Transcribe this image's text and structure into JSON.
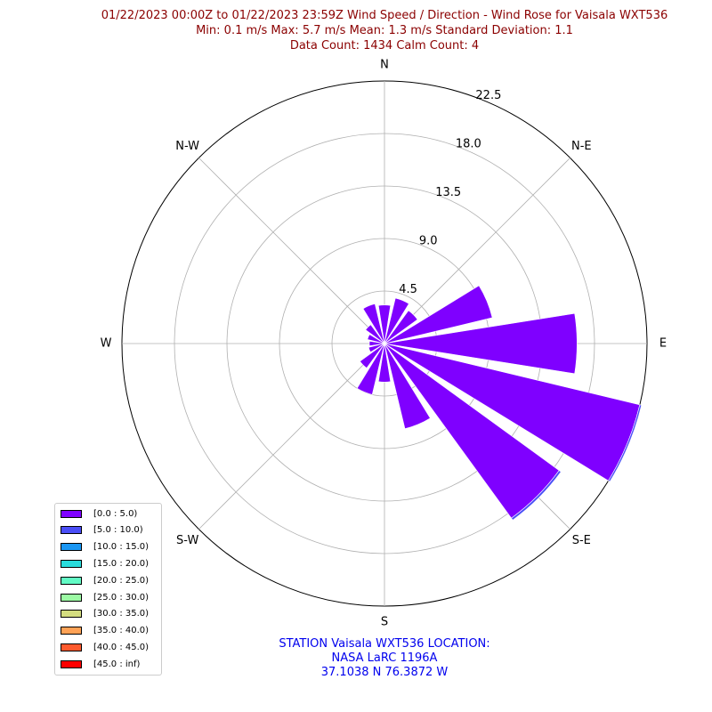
{
  "title": {
    "line1": "01/22/2023 00:00Z to 01/22/2023 23:59Z Wind Speed / Direction - Wind Rose for Vaisala WXT536",
    "line2": "Min: 0.1 m/s   Max: 5.7 m/s   Mean: 1.3 m/s  Standard Deviation: 1.1",
    "line3": "Data Count: 1434  Calm Count:  4"
  },
  "station": {
    "line1": "STATION Vaisala WXT536 LOCATION:",
    "line2": "NASA LaRC 1196A",
    "line3": "37.1038 N 76.3872 W"
  },
  "chart_data": {
    "type": "windrose",
    "directions": [
      "N",
      "NNE",
      "NE",
      "ENE",
      "E",
      "ESE",
      "SE",
      "SSE",
      "S",
      "SSW",
      "SW",
      "WSW",
      "W",
      "WNW",
      "NW",
      "NNW"
    ],
    "direction_labels": [
      "N",
      "N-E",
      "E",
      "S-E",
      "S",
      "S-W",
      "W",
      "N-W"
    ],
    "radial_ticks": [
      "4.5",
      "9.0",
      "13.5",
      "18.0",
      "22.5"
    ],
    "radial_max": 22.5,
    "series": [
      {
        "name": "[0.0 : 5.0)",
        "values": [
          3.3,
          4.0,
          3.5,
          9.5,
          16.5,
          22.5,
          18.5,
          7.5,
          3.3,
          4.5,
          2.6,
          1.4,
          1.3,
          1.5,
          2.0,
          3.5
        ]
      },
      {
        "name": "[5.0 : 10.0)",
        "values": [
          0,
          0,
          0,
          0,
          0,
          0.15,
          0.2,
          0,
          0,
          0,
          0,
          0,
          0,
          0,
          0,
          0
        ]
      }
    ],
    "legend": [
      {
        "label": "[0.0 : 5.0)",
        "color": "#7f00ff"
      },
      {
        "label": "[5.0 : 10.0)",
        "color": "#4a4ef7"
      },
      {
        "label": "[10.0 : 15.0)",
        "color": "#1996f3"
      },
      {
        "label": "[15.0 : 20.0)",
        "color": "#2adddd"
      },
      {
        "label": "[20.0 : 25.0)",
        "color": "#62fbc5"
      },
      {
        "label": "[25.0 : 30.0)",
        "color": "#9cfaa4"
      },
      {
        "label": "[30.0 : 35.0)",
        "color": "#d4dd80"
      },
      {
        "label": "[35.0 : 40.0)",
        "color": "#ffa256"
      },
      {
        "label": "[40.0 : 45.0)",
        "color": "#ff5a2e"
      },
      {
        "label": "[45.0 : inf)",
        "color": "#ff0000"
      }
    ],
    "legend_position": "lower-left",
    "grid": true
  }
}
